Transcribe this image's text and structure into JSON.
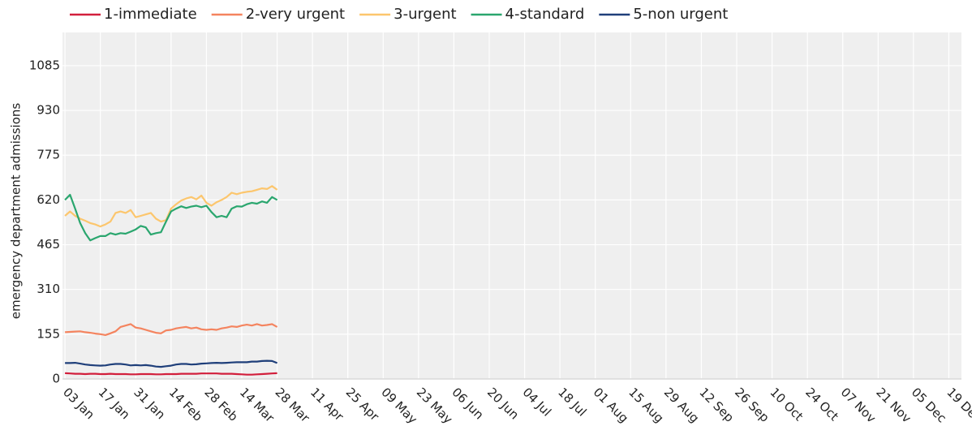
{
  "chart_data": {
    "type": "line",
    "y_label": "emergency department admissions",
    "x": [
      "03 Jan",
      "05 Jan",
      "07 Jan",
      "09 Jan",
      "11 Jan",
      "13 Jan",
      "15 Jan",
      "17 Jan",
      "19 Jan",
      "21 Jan",
      "23 Jan",
      "25 Jan",
      "27 Jan",
      "29 Jan",
      "31 Jan",
      "02 Feb",
      "04 Feb",
      "06 Feb",
      "08 Feb",
      "10 Feb",
      "12 Feb",
      "14 Feb",
      "16 Feb",
      "18 Feb",
      "20 Feb",
      "22 Feb",
      "24 Feb",
      "26 Feb",
      "28 Feb",
      "02 Mar",
      "04 Mar",
      "06 Mar",
      "08 Mar",
      "10 Mar",
      "12 Mar",
      "14 Mar",
      "16 Mar",
      "18 Mar",
      "20 Mar",
      "22 Mar",
      "24 Mar",
      "26 Mar",
      "28 Mar"
    ],
    "series": [
      {
        "name": "1-immediate",
        "color": "#d21f3c",
        "values": [
          20,
          19,
          18,
          18,
          17,
          18,
          18,
          17,
          17,
          18,
          17,
          17,
          17,
          16,
          16,
          17,
          17,
          17,
          16,
          16,
          17,
          17,
          17,
          18,
          18,
          18,
          18,
          19,
          19,
          19,
          19,
          18,
          18,
          18,
          17,
          16,
          15,
          15,
          16,
          17,
          18,
          19,
          20
        ]
      },
      {
        "name": "2-very urgent",
        "color": "#f4845f",
        "values": [
          162,
          163,
          164,
          165,
          162,
          160,
          157,
          155,
          152,
          158,
          165,
          180,
          185,
          190,
          178,
          175,
          170,
          165,
          160,
          158,
          168,
          170,
          175,
          178,
          180,
          175,
          178,
          172,
          170,
          172,
          170,
          175,
          178,
          182,
          180,
          185,
          188,
          185,
          190,
          185,
          187,
          190,
          180
        ]
      },
      {
        "name": "3-urgent",
        "color": "#fcc66d",
        "values": [
          565,
          580,
          565,
          555,
          548,
          540,
          535,
          528,
          535,
          545,
          575,
          580,
          575,
          585,
          560,
          565,
          570,
          575,
          555,
          545,
          550,
          590,
          605,
          618,
          625,
          630,
          622,
          635,
          610,
          600,
          612,
          620,
          630,
          645,
          640,
          645,
          648,
          650,
          655,
          660,
          658,
          668,
          655
        ]
      },
      {
        "name": "4-standard",
        "color": "#2aa66e",
        "values": [
          620,
          638,
          590,
          540,
          505,
          480,
          488,
          495,
          495,
          505,
          500,
          505,
          503,
          510,
          518,
          530,
          525,
          500,
          505,
          508,
          545,
          580,
          590,
          598,
          592,
          597,
          600,
          595,
          600,
          578,
          560,
          565,
          560,
          590,
          598,
          597,
          605,
          610,
          607,
          615,
          610,
          630,
          620
        ]
      },
      {
        "name": "5-non urgent",
        "color": "#1f3f7a",
        "values": [
          55,
          55,
          56,
          53,
          50,
          48,
          47,
          46,
          47,
          50,
          52,
          52,
          50,
          47,
          48,
          47,
          48,
          46,
          43,
          42,
          44,
          46,
          50,
          52,
          52,
          50,
          51,
          53,
          54,
          55,
          56,
          55,
          56,
          57,
          58,
          58,
          58,
          60,
          60,
          62,
          63,
          62,
          55
        ]
      }
    ],
    "xlim": [
      "02 Jan",
      "24 Dec"
    ],
    "xticks": [
      "03 Jan",
      "17 Jan",
      "31 Jan",
      "14 Feb",
      "28 Feb",
      "14 Mar",
      "28 Mar",
      "11 Apr",
      "25 Apr",
      "09 May",
      "23 May",
      "06 Jun",
      "20 Jun",
      "04 Jul",
      "18 Jul",
      "01 Aug",
      "15 Aug",
      "29 Aug",
      "12 Sep",
      "26 Sep",
      "10 Oct",
      "24 Oct",
      "07 Nov",
      "21 Nov",
      "05 Dec",
      "19 Dec"
    ],
    "ylim": [
      0,
      1200
    ],
    "yticks": [
      0,
      155,
      310,
      465,
      620,
      775,
      930,
      1085
    ],
    "grid": true,
    "legend": "top"
  }
}
